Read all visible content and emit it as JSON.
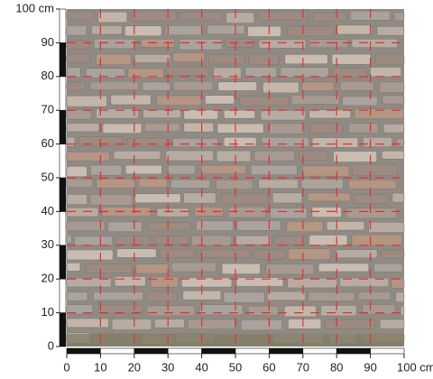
{
  "y_axis": {
    "tick_labels": [
      "0",
      "10",
      "20",
      "30",
      "40",
      "50",
      "60",
      "70",
      "80",
      "90",
      "100 cm"
    ]
  },
  "x_axis": {
    "tick_labels": [
      "0",
      "10",
      "20",
      "30",
      "40",
      "50",
      "60",
      "70",
      "80",
      "90",
      "100 cm"
    ]
  }
}
